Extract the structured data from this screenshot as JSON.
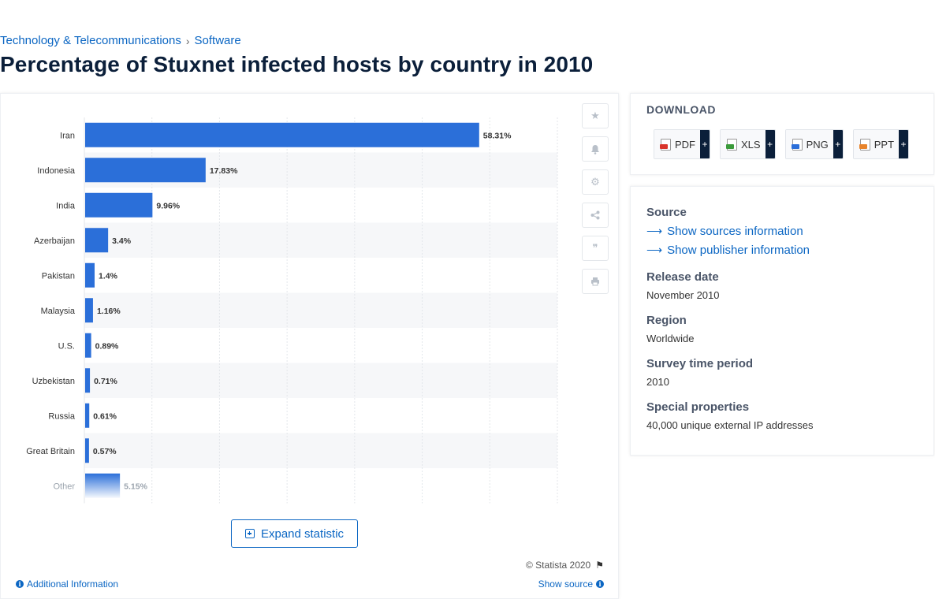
{
  "breadcrumb": {
    "item1": "Technology & Telecommunications",
    "item2": "Software",
    "sep": "›"
  },
  "page_title": "Percentage of Stuxnet infected hosts by country in 2010",
  "chart_data": {
    "type": "bar",
    "orientation": "horizontal",
    "categories": [
      "Iran",
      "Indonesia",
      "India",
      "Azerbaijan",
      "Pakistan",
      "Malaysia",
      "U.S.",
      "Uzbekistan",
      "Russia",
      "Great Britain",
      "Other"
    ],
    "values": [
      58.31,
      17.83,
      9.96,
      3.4,
      1.4,
      1.16,
      0.89,
      0.71,
      0.61,
      0.57,
      5.15
    ],
    "value_labels": [
      "58.31%",
      "17.83%",
      "9.96%",
      "3.4%",
      "1.4%",
      "1.16%",
      "0.89%",
      "0.71%",
      "0.61%",
      "0.57%",
      "5.15%"
    ],
    "xlim": [
      0,
      70
    ],
    "grid": true,
    "bar_color": "#2b6fd9",
    "title": "",
    "xlabel": "",
    "ylabel": ""
  },
  "tools": [
    "star-icon",
    "bell-icon",
    "gear-icon",
    "share-icon",
    "quote-icon",
    "print-icon"
  ],
  "expand_label": "Expand statistic",
  "copyright": "© Statista 2020",
  "additional_info": "Additional Information",
  "show_source": "Show source",
  "download": {
    "title": "DOWNLOAD",
    "buttons": [
      {
        "label": "PDF",
        "color": "#d9342b"
      },
      {
        "label": "XLS",
        "color": "#3a9a3a"
      },
      {
        "label": "PNG",
        "color": "#2b6fd9"
      },
      {
        "label": "PPT",
        "color": "#e8832a"
      }
    ],
    "plus": "+"
  },
  "info": {
    "source_label": "Source",
    "sources_link": "Show sources information",
    "publisher_link": "Show publisher information",
    "release_label": "Release date",
    "release_value": "November 2010",
    "region_label": "Region",
    "region_value": "Worldwide",
    "survey_label": "Survey time period",
    "survey_value": "2010",
    "special_label": "Special properties",
    "special_value": "40,000 unique external IP addresses"
  }
}
